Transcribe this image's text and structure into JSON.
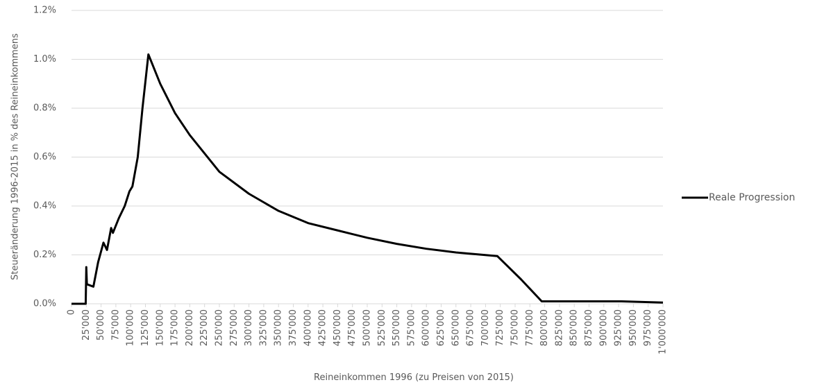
{
  "chart_data": {
    "type": "line",
    "x_label": "Reineinkommen 1996 (zu Preisen von 2015)",
    "y_label": "Steueränderung 1996-2015 in % des Reineinkommens",
    "series": [
      {
        "name": "Reale Progression",
        "color": "#000000",
        "x": [
          0,
          24000,
          25000,
          26000,
          37000,
          45000,
          54000,
          60000,
          67000,
          70000,
          80000,
          90000,
          98000,
          103000,
          112000,
          120000,
          130000,
          150000,
          175000,
          200000,
          250000,
          300000,
          350000,
          400000,
          450000,
          500000,
          550000,
          600000,
          650000,
          720000,
          760000,
          795000,
          850000,
          930000,
          1000000
        ],
        "values": [
          0,
          0,
          0.15,
          0.08,
          0.07,
          0.17,
          0.25,
          0.22,
          0.31,
          0.29,
          0.35,
          0.4,
          0.46,
          0.48,
          0.6,
          0.8,
          1.02,
          0.9,
          0.78,
          0.69,
          0.54,
          0.45,
          0.38,
          0.33,
          0.3,
          0.27,
          0.245,
          0.225,
          0.21,
          0.195,
          0.1,
          0.01,
          0.01,
          0.01,
          0.005
        ]
      }
    ],
    "xlim": [
      0,
      1000000
    ],
    "xticks": [
      0,
      {
        "value": 25000,
        "label": "25'000"
      },
      {
        "value": 50000,
        "label": "50'000"
      },
      {
        "value": 75000,
        "label": "75'000"
      },
      {
        "value": 100000,
        "label": "100'000"
      },
      {
        "value": 125000,
        "label": "125'000"
      },
      {
        "value": 150000,
        "label": "150'000"
      },
      {
        "value": 175000,
        "label": "175'000"
      },
      {
        "value": 200000,
        "label": "200'000"
      },
      {
        "value": 225000,
        "label": "225'000"
      },
      {
        "value": 250000,
        "label": "250'000"
      },
      {
        "value": 275000,
        "label": "275'000"
      },
      {
        "value": 300000,
        "label": "300'000"
      },
      {
        "value": 325000,
        "label": "325'000"
      },
      {
        "value": 350000,
        "label": "350'000"
      },
      {
        "value": 375000,
        "label": "375'000"
      },
      {
        "value": 400000,
        "label": "400'000"
      },
      {
        "value": 425000,
        "label": "425'000"
      },
      {
        "value": 450000,
        "label": "450'000"
      },
      {
        "value": 475000,
        "label": "475'000"
      },
      {
        "value": 500000,
        "label": "500'000"
      },
      {
        "value": 525000,
        "label": "525'000"
      },
      {
        "value": 550000,
        "label": "550'000"
      },
      {
        "value": 575000,
        "label": "575'000"
      },
      {
        "value": 600000,
        "label": "600'000"
      },
      {
        "value": 625000,
        "label": "625'000"
      },
      {
        "value": 650000,
        "label": "650'000"
      },
      {
        "value": 675000,
        "label": "675'000"
      },
      {
        "value": 700000,
        "label": "700'000"
      },
      {
        "value": 725000,
        "label": "725'000"
      },
      {
        "value": 750000,
        "label": "750'000"
      },
      {
        "value": 775000,
        "label": "775'000"
      },
      {
        "value": 800000,
        "label": "800'000"
      },
      {
        "value": 825000,
        "label": "825'000"
      },
      {
        "value": 850000,
        "label": "850'000"
      },
      {
        "value": 875000,
        "label": "875'000"
      },
      {
        "value": 900000,
        "label": "900'000"
      },
      {
        "value": 925000,
        "label": "925'000"
      },
      {
        "value": 950000,
        "label": "950'000"
      },
      {
        "value": 975000,
        "label": "975'000"
      },
      {
        "value": 1000000,
        "label": "1'000'000"
      }
    ],
    "ylim": [
      0,
      1.2
    ],
    "yticks": [
      {
        "value": 0,
        "label": "0.0%"
      },
      {
        "value": 0.2,
        "label": "0.2%"
      },
      {
        "value": 0.4,
        "label": "0.4%"
      },
      {
        "value": 0.6,
        "label": "0.6%"
      },
      {
        "value": 0.8,
        "label": "0.8%"
      },
      {
        "value": 1.0,
        "label": "1.0%"
      },
      {
        "value": 1.2,
        "label": "1.2%"
      }
    ],
    "grid": true,
    "legend": "right"
  }
}
